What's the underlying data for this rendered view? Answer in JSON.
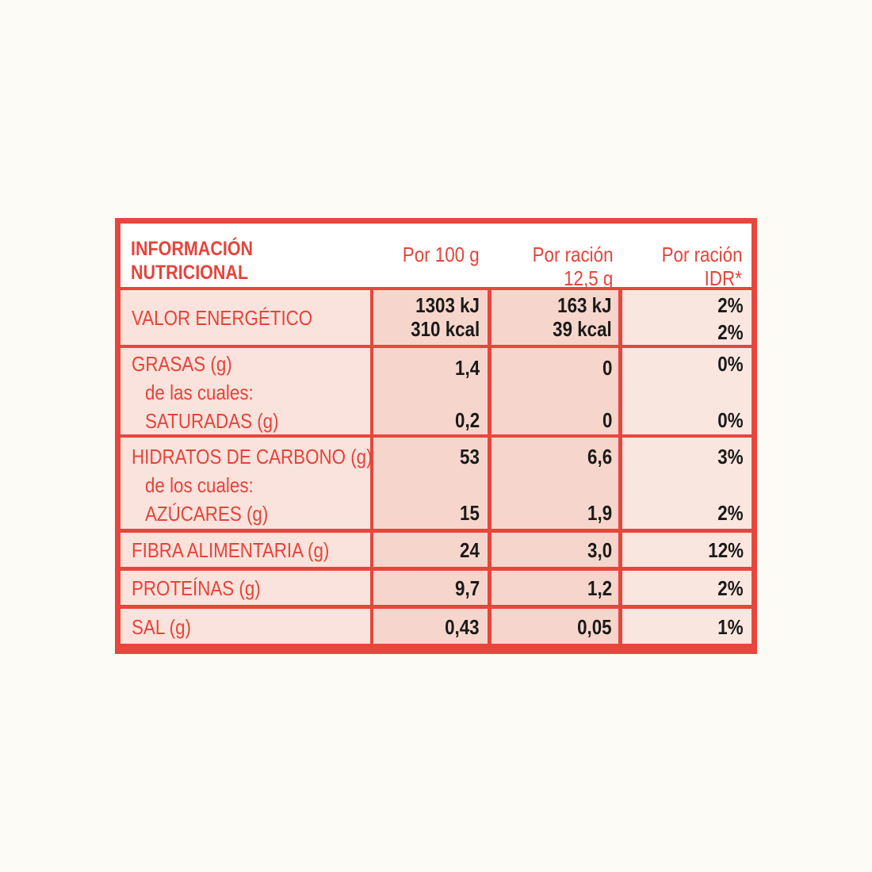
{
  "header": {
    "title_line1": "INFORMACIÓN",
    "title_line2": "NUTRICIONAL",
    "col1": "Por 100 g",
    "col2_line1": "Por ración",
    "col2_line2": "12,5 g",
    "col3_line1": "Por ración",
    "col3_line2": "IDR*"
  },
  "rows": {
    "energy": {
      "label": "VALOR ENERGÉTICO",
      "per100_kj": "1303 kJ",
      "per100_kcal": "310 kcal",
      "portion_kj": "163 kJ",
      "portion_kcal": "39 kcal",
      "idr_kj": "2%",
      "idr_kcal": "2%"
    },
    "fat": {
      "label": "GRASAS (g)",
      "sub_intro": "de las cuales:",
      "sub_label": "SATURADAS (g)",
      "per100": "1,4",
      "portion": "0",
      "idr": "0%",
      "sub_per100": "0,2",
      "sub_portion": "0",
      "sub_idr": "0%"
    },
    "carbs": {
      "label": "HIDRATOS DE CARBONO (g)",
      "sub_intro": "de los cuales:",
      "sub_label": "AZÚCARES (g)",
      "per100": "53",
      "portion": "6,6",
      "idr": "3%",
      "sub_per100": "15",
      "sub_portion": "1,9",
      "sub_idr": "2%"
    },
    "fiber": {
      "label": "FIBRA ALIMENTARIA (g)",
      "per100": "24",
      "portion": "3,0",
      "idr": "12%"
    },
    "protein": {
      "label": "PROTEÍNAS (g)",
      "per100": "9,7",
      "portion": "1,2",
      "idr": "2%"
    },
    "salt": {
      "label": "SAL (g)",
      "per100": "0,43",
      "portion": "0,05",
      "idr": "1%"
    }
  }
}
